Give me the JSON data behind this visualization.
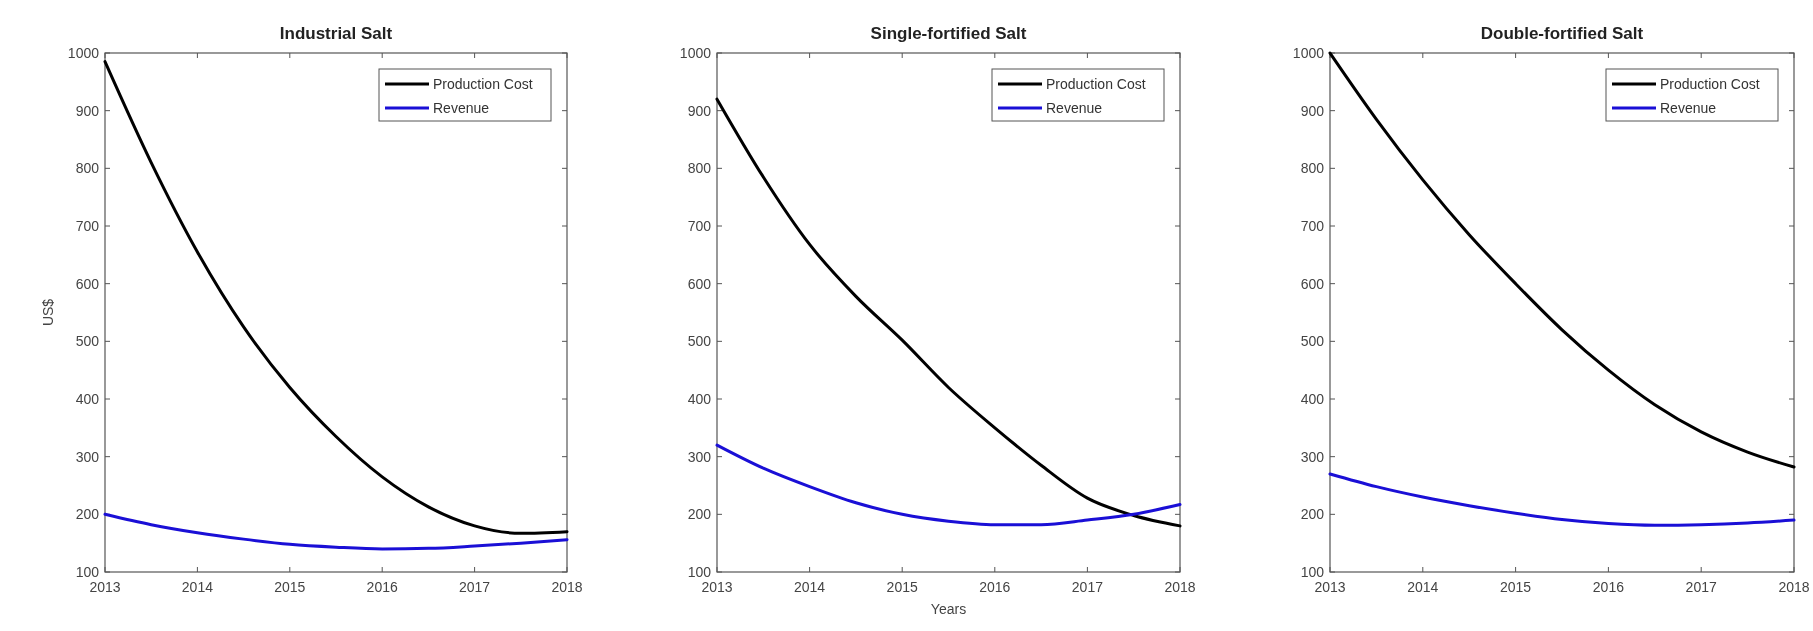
{
  "chart_data": [
    {
      "type": "line",
      "title": "Industrial Salt",
      "ylabel": "US$",
      "x": [
        2013,
        2013.5,
        2014,
        2014.5,
        2015,
        2015.5,
        2016,
        2016.5,
        2017,
        2017.5,
        2018
      ],
      "xlim": [
        2013,
        2018
      ],
      "xticks": [
        2013,
        2014,
        2015,
        2016,
        2017,
        2018
      ],
      "ylim": [
        100,
        1000
      ],
      "yticks": [
        100,
        200,
        300,
        400,
        500,
        600,
        700,
        800,
        900,
        1000
      ],
      "legend": "top right",
      "grid": false,
      "series": [
        {
          "name": "Production Cost",
          "color": "#000000",
          "values": [
            985,
            810,
            655,
            525,
            420,
            335,
            265,
            213,
            180,
            167,
            170
          ]
        },
        {
          "name": "Revenue",
          "color": "#1a0fd6",
          "values": [
            200,
            182,
            168,
            157,
            148,
            143,
            140,
            141,
            145,
            150,
            156
          ]
        }
      ]
    },
    {
      "type": "line",
      "title": "Single-fortified Salt",
      "xlabel": "Years",
      "x": [
        2013,
        2013.5,
        2014,
        2014.5,
        2015,
        2015.5,
        2016,
        2016.5,
        2017,
        2017.5,
        2018
      ],
      "xlim": [
        2013,
        2018
      ],
      "xticks": [
        2013,
        2014,
        2015,
        2016,
        2017,
        2018
      ],
      "ylim": [
        100,
        1000
      ],
      "yticks": [
        100,
        200,
        300,
        400,
        500,
        600,
        700,
        800,
        900,
        1000
      ],
      "legend": "top right",
      "grid": false,
      "series": [
        {
          "name": "Production Cost",
          "color": "#000000",
          "values": [
            920,
            785,
            668,
            578,
            502,
            420,
            350,
            285,
            228,
            198,
            180
          ]
        },
        {
          "name": "Revenue",
          "color": "#1a0fd6",
          "values": [
            320,
            280,
            248,
            220,
            200,
            188,
            182,
            182,
            190,
            200,
            217
          ]
        }
      ]
    },
    {
      "type": "line",
      "title": "Double-fortified Salt",
      "x": [
        2013,
        2013.5,
        2014,
        2014.5,
        2015,
        2015.5,
        2016,
        2016.5,
        2017,
        2017.5,
        2018
      ],
      "xlim": [
        2013,
        2018
      ],
      "xticks": [
        2013,
        2014,
        2015,
        2016,
        2017,
        2018
      ],
      "ylim": [
        100,
        1000
      ],
      "yticks": [
        100,
        200,
        300,
        400,
        500,
        600,
        700,
        800,
        900,
        1000
      ],
      "legend": "top right",
      "grid": false,
      "series": [
        {
          "name": "Production Cost",
          "color": "#000000",
          "values": [
            1000,
            885,
            780,
            685,
            600,
            520,
            450,
            390,
            343,
            308,
            282
          ]
        },
        {
          "name": "Revenue",
          "color": "#1a0fd6",
          "values": [
            270,
            248,
            230,
            215,
            202,
            191,
            184,
            181,
            182,
            185,
            190
          ]
        }
      ]
    }
  ]
}
